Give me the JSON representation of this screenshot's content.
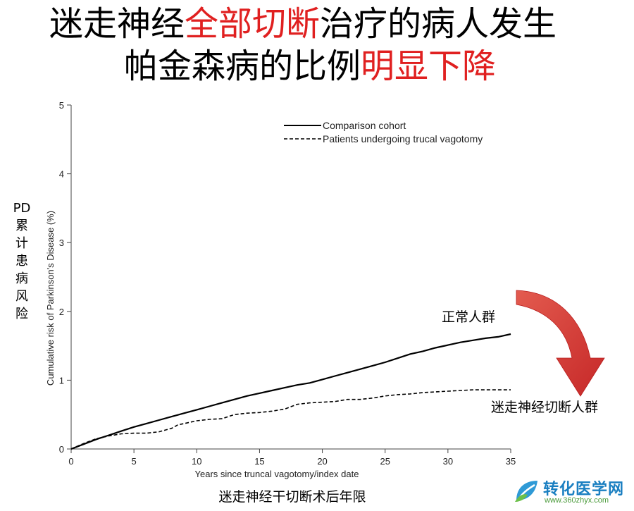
{
  "title": {
    "line1_a": "迷走神经",
    "line1_b": "全部切断",
    "line1_c": "治疗的病人发生",
    "line2_a": "帕金森病的比例",
    "line2_b": "明显下降",
    "highlight_color": "#e02020"
  },
  "side_label": [
    "PD",
    "累",
    "计",
    "患",
    "病",
    "风",
    "险"
  ],
  "annotations": {
    "normal_group": "正常人群",
    "vagotomy_group": "迷走神经切断人群",
    "arrow_color": "#c62828"
  },
  "x_caption": "迷走神经干切断术后年限",
  "watermark": {
    "name": "转化医学网",
    "url": "www.360zhyx.com"
  },
  "chart_data": {
    "type": "line",
    "xlabel": "Years since truncal vagotomy/index date",
    "ylabel": "Cumulative risk of Parkinson's Disease (%)",
    "xlim": [
      0,
      35
    ],
    "ylim": [
      0,
      5
    ],
    "xticks": [
      0,
      5,
      10,
      15,
      20,
      25,
      30,
      35
    ],
    "yticks": [
      0,
      1,
      2,
      3,
      4,
      5
    ],
    "legend_position": "top-right",
    "grid": false,
    "series": [
      {
        "name": "Comparison cohort",
        "style": "solid",
        "x": [
          0,
          1,
          2,
          3,
          4,
          5,
          6,
          7,
          8,
          9,
          10,
          11,
          12,
          13,
          14,
          15,
          16,
          17,
          18,
          19,
          20,
          21,
          22,
          23,
          24,
          25,
          26,
          27,
          28,
          29,
          30,
          31,
          32,
          33,
          34,
          35
        ],
        "y": [
          0,
          0.07,
          0.14,
          0.2,
          0.26,
          0.32,
          0.37,
          0.42,
          0.47,
          0.52,
          0.57,
          0.62,
          0.67,
          0.72,
          0.77,
          0.81,
          0.85,
          0.89,
          0.93,
          0.96,
          1.01,
          1.06,
          1.11,
          1.16,
          1.21,
          1.26,
          1.32,
          1.38,
          1.42,
          1.47,
          1.51,
          1.55,
          1.58,
          1.61,
          1.63,
          1.67
        ]
      },
      {
        "name": "Patients undergoing trucal vagotomy",
        "style": "dashed",
        "x": [
          0,
          1,
          2,
          3,
          4,
          5,
          6,
          7,
          8,
          8.5,
          9,
          10,
          11,
          12,
          13,
          14,
          15,
          16,
          17,
          18,
          19,
          20,
          21,
          22,
          23,
          24,
          25,
          26,
          27,
          28,
          29,
          30,
          31,
          32,
          33,
          34,
          35
        ],
        "y": [
          0,
          0.08,
          0.15,
          0.19,
          0.22,
          0.23,
          0.23,
          0.25,
          0.3,
          0.35,
          0.37,
          0.41,
          0.43,
          0.44,
          0.5,
          0.52,
          0.53,
          0.55,
          0.58,
          0.65,
          0.67,
          0.68,
          0.69,
          0.72,
          0.72,
          0.74,
          0.77,
          0.79,
          0.8,
          0.82,
          0.83,
          0.84,
          0.85,
          0.86,
          0.86,
          0.86,
          0.86
        ]
      }
    ]
  }
}
